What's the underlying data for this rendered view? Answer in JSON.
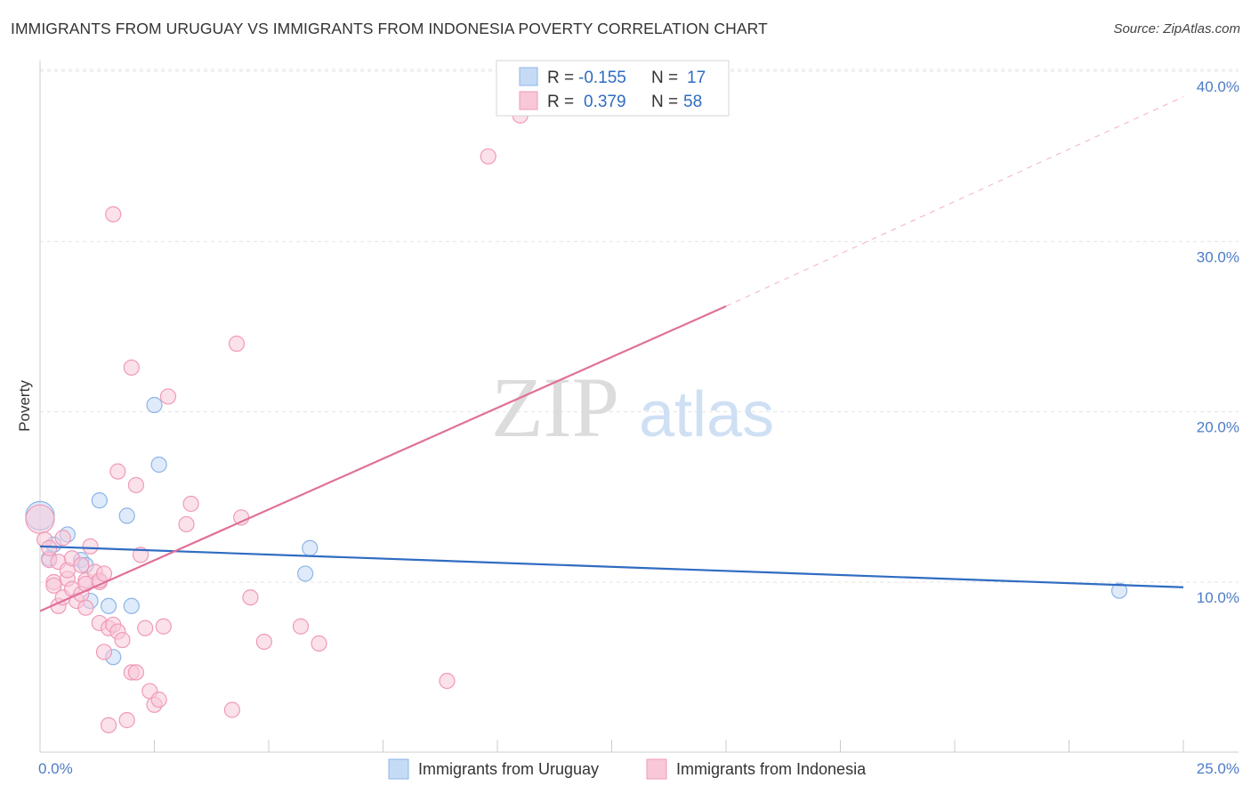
{
  "title": "IMMIGRANTS FROM URUGUAY VS IMMIGRANTS FROM INDONESIA POVERTY CORRELATION CHART",
  "source": "Source: ZipAtlas.com",
  "watermark": {
    "zip": "ZIP",
    "atlas": "atlas"
  },
  "chart_data": {
    "type": "scatter",
    "ylabel": "Poverty",
    "xlim": [
      0,
      25
    ],
    "ylim": [
      0,
      42
    ],
    "x_tick_labels": [
      {
        "value": 0,
        "label": "0.0%"
      },
      {
        "value": 25,
        "label": "25.0%"
      }
    ],
    "x_minor_ticks": [
      2.5,
      5,
      7.5,
      10,
      12.5,
      15,
      17.5,
      20,
      22.5,
      25
    ],
    "y_ticks": [
      {
        "value": 10,
        "label": "10.0%"
      },
      {
        "value": 20,
        "label": "20.0%"
      },
      {
        "value": 30,
        "label": "30.0%"
      },
      {
        "value": 40,
        "label": "40.0%"
      }
    ],
    "grid": true,
    "legend": {
      "rows": [
        {
          "r_label": "R =",
          "r_value": "-0.155",
          "n_label": "N =",
          "n_value": "17"
        },
        {
          "r_label": "R =",
          "r_value": "0.379",
          "n_label": "N =",
          "n_value": "58"
        }
      ]
    },
    "series": [
      {
        "name": "Immigrants from Uruguay",
        "color": "#8db4e8",
        "fill": "#c5dbf5",
        "line_color": "#2f6cc2",
        "trend": {
          "x0": 0,
          "y0": 12.1,
          "x1": 25,
          "y1": 9.7
        },
        "points": [
          {
            "x": 0.0,
            "y": 13.9,
            "big": true
          },
          {
            "x": 0.3,
            "y": 12.2
          },
          {
            "x": 0.6,
            "y": 12.8
          },
          {
            "x": 0.9,
            "y": 11.3
          },
          {
            "x": 1.0,
            "y": 11.0
          },
          {
            "x": 1.1,
            "y": 8.9
          },
          {
            "x": 1.3,
            "y": 14.8
          },
          {
            "x": 1.5,
            "y": 8.6
          },
          {
            "x": 1.6,
            "y": 5.6
          },
          {
            "x": 1.9,
            "y": 13.9
          },
          {
            "x": 2.0,
            "y": 8.6
          },
          {
            "x": 2.5,
            "y": 20.4
          },
          {
            "x": 2.6,
            "y": 16.9
          },
          {
            "x": 5.9,
            "y": 12.0
          },
          {
            "x": 5.8,
            "y": 10.5
          },
          {
            "x": 23.6,
            "y": 9.5
          },
          {
            "x": 0.2,
            "y": 11.4
          }
        ]
      },
      {
        "name": "Immigrants from Indonesia",
        "color": "#f09ab8",
        "fill": "#f8c8d8",
        "line_color": "#e0709a",
        "trend": {
          "x0": 0,
          "y0": 8.3,
          "x1": 15,
          "y1": 26.2
        },
        "trend_dashed": {
          "x0": 15,
          "y0": 26.2,
          "x1": 25,
          "y1": 38.5
        },
        "points": [
          {
            "x": 0.0,
            "y": 13.7,
            "big": true
          },
          {
            "x": 0.1,
            "y": 12.5
          },
          {
            "x": 0.2,
            "y": 11.3
          },
          {
            "x": 0.3,
            "y": 10.0
          },
          {
            "x": 0.3,
            "y": 9.8
          },
          {
            "x": 0.4,
            "y": 8.6
          },
          {
            "x": 0.4,
            "y": 11.2
          },
          {
            "x": 0.5,
            "y": 9.1
          },
          {
            "x": 0.6,
            "y": 10.2
          },
          {
            "x": 0.6,
            "y": 10.7
          },
          {
            "x": 0.7,
            "y": 11.4
          },
          {
            "x": 0.7,
            "y": 9.6
          },
          {
            "x": 0.8,
            "y": 8.9
          },
          {
            "x": 0.9,
            "y": 9.3
          },
          {
            "x": 0.9,
            "y": 11.0
          },
          {
            "x": 1.0,
            "y": 10.1
          },
          {
            "x": 1.0,
            "y": 9.9
          },
          {
            "x": 1.1,
            "y": 12.1
          },
          {
            "x": 1.2,
            "y": 10.6
          },
          {
            "x": 1.3,
            "y": 10.0
          },
          {
            "x": 1.3,
            "y": 10.1
          },
          {
            "x": 1.4,
            "y": 10.5
          },
          {
            "x": 1.3,
            "y": 7.6
          },
          {
            "x": 1.4,
            "y": 5.9
          },
          {
            "x": 1.5,
            "y": 7.3
          },
          {
            "x": 1.5,
            "y": 1.6
          },
          {
            "x": 1.6,
            "y": 7.5
          },
          {
            "x": 1.7,
            "y": 7.1
          },
          {
            "x": 1.8,
            "y": 6.6
          },
          {
            "x": 1.9,
            "y": 1.9
          },
          {
            "x": 2.0,
            "y": 4.7
          },
          {
            "x": 2.1,
            "y": 4.7
          },
          {
            "x": 2.2,
            "y": 11.6
          },
          {
            "x": 2.3,
            "y": 7.3
          },
          {
            "x": 2.4,
            "y": 3.6
          },
          {
            "x": 2.5,
            "y": 2.8
          },
          {
            "x": 2.6,
            "y": 3.1
          },
          {
            "x": 2.7,
            "y": 7.4
          },
          {
            "x": 1.6,
            "y": 31.6
          },
          {
            "x": 2.0,
            "y": 22.6
          },
          {
            "x": 1.7,
            "y": 16.5
          },
          {
            "x": 2.1,
            "y": 15.7
          },
          {
            "x": 2.8,
            "y": 20.9
          },
          {
            "x": 3.2,
            "y": 13.4
          },
          {
            "x": 3.3,
            "y": 14.6
          },
          {
            "x": 4.2,
            "y": 2.5
          },
          {
            "x": 4.3,
            "y": 24.0
          },
          {
            "x": 4.4,
            "y": 13.8
          },
          {
            "x": 4.6,
            "y": 9.1
          },
          {
            "x": 4.9,
            "y": 6.5
          },
          {
            "x": 5.7,
            "y": 7.4
          },
          {
            "x": 6.1,
            "y": 6.4
          },
          {
            "x": 8.9,
            "y": 4.2
          },
          {
            "x": 9.8,
            "y": 35.0
          },
          {
            "x": 10.5,
            "y": 37.4
          },
          {
            "x": 0.2,
            "y": 12.0
          },
          {
            "x": 1.0,
            "y": 8.5
          },
          {
            "x": 0.5,
            "y": 12.6
          }
        ]
      }
    ]
  }
}
